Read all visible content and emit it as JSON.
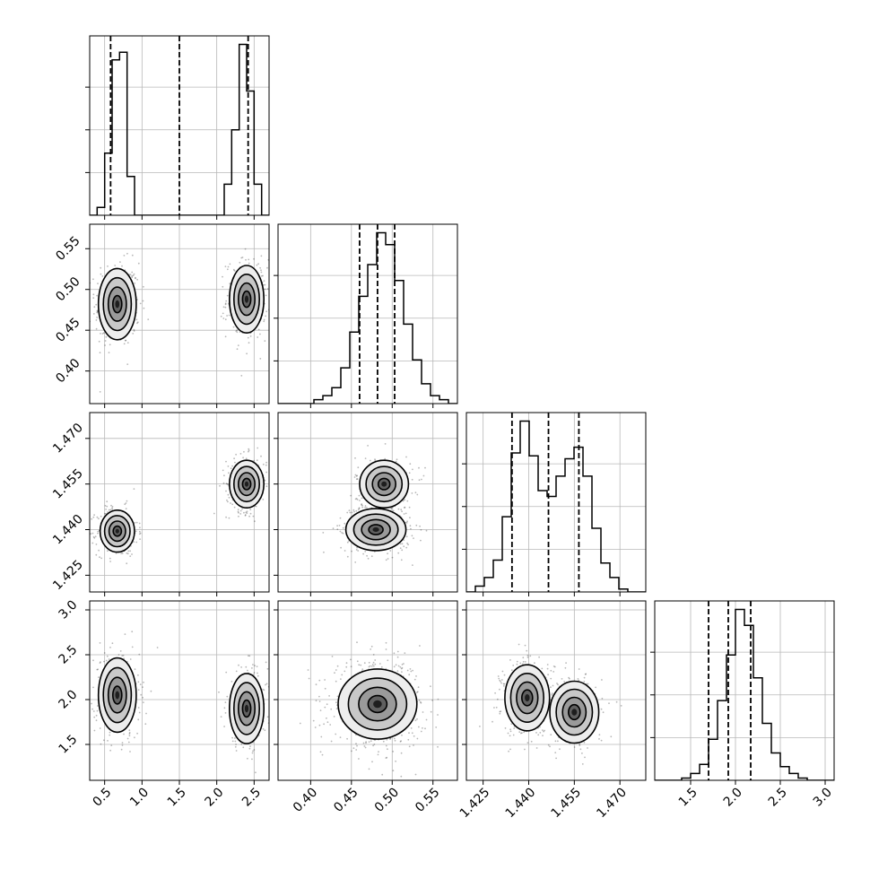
{
  "chart_data": {
    "type": "corner",
    "title": "",
    "parameters": [
      {
        "range": [
          0.3,
          2.7
        ],
        "ticks": [
          0.5,
          1.0,
          1.5,
          2.0,
          2.5
        ],
        "tick_labels": [
          "0.5",
          "1.0",
          "1.5",
          "2.0",
          "2.5"
        ]
      },
      {
        "range": [
          0.36,
          0.58
        ],
        "ticks": [
          0.4,
          0.45,
          0.5,
          0.55
        ],
        "tick_labels": [
          "0.40",
          "0.45",
          "0.50",
          "0.55"
        ]
      },
      {
        "range": [
          1.4195,
          1.4785
        ],
        "ticks": [
          1.425,
          1.44,
          1.455,
          1.47
        ],
        "tick_labels": [
          "1.425",
          "1.440",
          "1.455",
          "1.470"
        ]
      },
      {
        "range": [
          1.1,
          3.1
        ],
        "ticks": [
          1.5,
          2.0,
          2.5,
          3.0
        ],
        "tick_labels": [
          "1.5",
          "2.0",
          "2.5",
          "3.0"
        ]
      }
    ],
    "quantiles": [
      [
        0.58,
        1.5,
        2.42
      ],
      [
        0.46,
        0.482,
        0.503
      ],
      [
        1.4345,
        1.4465,
        1.4565
      ],
      [
        1.7,
        1.92,
        2.17
      ]
    ],
    "histograms": [
      {
        "edges": [
          0.3,
          2.7
        ],
        "counts": [
          0,
          1,
          8,
          20,
          21,
          5,
          0,
          0,
          0,
          0,
          0,
          0,
          0,
          0,
          0,
          0,
          0,
          0,
          4,
          11,
          22,
          16,
          4,
          0
        ]
      },
      {
        "edges": [
          0.36,
          0.58
        ],
        "counts": [
          0,
          0,
          0,
          0,
          1,
          2,
          4,
          9,
          18,
          27,
          35,
          43,
          40,
          31,
          20,
          11,
          5,
          2,
          1,
          0
        ]
      },
      {
        "edges": [
          1.4195,
          1.4785
        ],
        "counts": [
          0,
          2,
          5,
          11,
          26,
          48,
          59,
          47,
          35,
          33,
          40,
          46,
          50,
          40,
          22,
          10,
          5,
          1,
          0,
          0
        ]
      },
      {
        "edges": [
          1.1,
          3.1
        ],
        "counts": [
          0,
          0,
          0,
          1,
          3,
          7,
          18,
          35,
          55,
          75,
          68,
          45,
          25,
          12,
          6,
          3,
          1,
          0,
          0,
          0
        ]
      }
    ],
    "modes": [
      {
        "row": 1,
        "col": 0,
        "blobs": [
          [
            0.67,
            0.482,
            0.11,
            0.019,
            0.55
          ],
          [
            2.4,
            0.488,
            0.1,
            0.018,
            0.45
          ]
        ]
      },
      {
        "row": 2,
        "col": 0,
        "blobs": [
          [
            0.67,
            1.4395,
            0.1,
            0.003,
            0.55
          ],
          [
            2.4,
            1.455,
            0.1,
            0.0034,
            0.45
          ]
        ]
      },
      {
        "row": 3,
        "col": 0,
        "blobs": [
          [
            0.67,
            2.05,
            0.11,
            0.18,
            0.55
          ],
          [
            2.4,
            1.9,
            0.1,
            0.17,
            0.45
          ]
        ]
      },
      {
        "row": 2,
        "col": 1,
        "blobs": [
          [
            0.48,
            1.44,
            0.016,
            0.003,
            0.55
          ],
          [
            0.49,
            1.455,
            0.013,
            0.0034,
            0.45
          ]
        ]
      },
      {
        "row": 3,
        "col": 1,
        "blobs": [
          [
            0.482,
            1.95,
            0.021,
            0.17,
            1.0
          ]
        ]
      },
      {
        "row": 3,
        "col": 2,
        "blobs": [
          [
            1.4395,
            2.02,
            0.0032,
            0.16,
            0.55
          ],
          [
            1.455,
            1.86,
            0.0035,
            0.15,
            0.45
          ]
        ]
      }
    ]
  }
}
